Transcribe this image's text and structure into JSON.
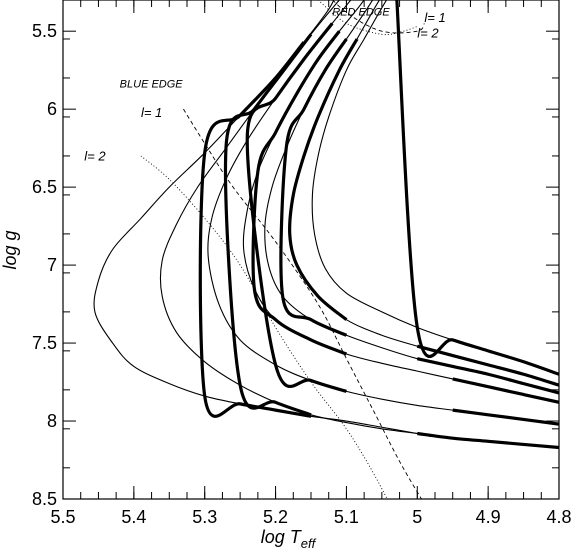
{
  "chart_data": {
    "type": "line",
    "title": "",
    "xlabel": "log T",
    "xlabel_sub": "eff",
    "ylabel": "log g",
    "xlim": [
      5.5,
      4.8
    ],
    "ylim": [
      8.5,
      5.3
    ],
    "x_inverted": true,
    "y_inverted": true,
    "grid": false,
    "legend": "none",
    "x_ticks": [
      {
        "v": 5.5,
        "label": "5.5"
      },
      {
        "v": 5.4,
        "label": "5.4"
      },
      {
        "v": 5.3,
        "label": "5.3"
      },
      {
        "v": 5.2,
        "label": "5.2"
      },
      {
        "v": 5.1,
        "label": "5.1"
      },
      {
        "v": 5.0,
        "label": "5"
      },
      {
        "v": 4.9,
        "label": "4.9"
      },
      {
        "v": 4.8,
        "label": "4.8"
      }
    ],
    "y_ticks": [
      {
        "v": 5.5,
        "label": "5.5"
      },
      {
        "v": 6.0,
        "label": "6"
      },
      {
        "v": 6.5,
        "label": "6.5"
      },
      {
        "v": 7.0,
        "label": "7"
      },
      {
        "v": 7.5,
        "label": "7.5"
      },
      {
        "v": 8.0,
        "label": "8"
      },
      {
        "v": 8.5,
        "label": "8.5"
      }
    ],
    "x_minor_step": 0.025,
    "y_minor_step": 0.25,
    "tracks": [
      {
        "points": [
          [
            4.8,
            7.7
          ],
          [
            4.85,
            7.62
          ],
          [
            4.9,
            7.55
          ],
          [
            4.95,
            7.48
          ],
          [
            5.0,
            7.4
          ],
          [
            5.05,
            7.3
          ],
          [
            5.1,
            7.18
          ],
          [
            5.13,
            7.02
          ],
          [
            5.145,
            6.8
          ],
          [
            5.148,
            6.55
          ],
          [
            5.14,
            6.3
          ],
          [
            5.125,
            6.05
          ],
          [
            5.1,
            5.75
          ],
          [
            5.075,
            5.55
          ],
          [
            5.05,
            5.35
          ],
          [
            5.03,
            5.2
          ]
        ],
        "thick": [
          [
            4.8,
            5.03
          ]
        ]
      },
      {
        "points": [
          [
            4.8,
            7.77
          ],
          [
            4.85,
            7.7
          ],
          [
            4.9,
            7.64
          ],
          [
            4.95,
            7.58
          ],
          [
            5.0,
            7.52
          ],
          [
            5.05,
            7.45
          ],
          [
            5.1,
            7.35
          ],
          [
            5.14,
            7.2
          ],
          [
            5.17,
            7.0
          ],
          [
            5.18,
            6.8
          ],
          [
            5.175,
            6.55
          ],
          [
            5.16,
            6.3
          ],
          [
            5.14,
            6.05
          ],
          [
            5.11,
            5.75
          ],
          [
            5.085,
            5.55
          ],
          [
            5.06,
            5.35
          ],
          [
            5.04,
            5.2
          ]
        ],
        "thick": [
          [
            4.8,
            5.035
          ],
          [
            5.075,
            5.18
          ]
        ]
      },
      {
        "points": [
          [
            4.8,
            7.82
          ],
          [
            4.85,
            7.76
          ],
          [
            4.9,
            7.7
          ],
          [
            4.95,
            7.65
          ],
          [
            5.0,
            7.6
          ],
          [
            5.05,
            7.53
          ],
          [
            5.1,
            7.45
          ],
          [
            5.15,
            7.35
          ],
          [
            5.19,
            7.2
          ],
          [
            5.21,
            7.0
          ],
          [
            5.215,
            6.75
          ],
          [
            5.205,
            6.5
          ],
          [
            5.185,
            6.25
          ],
          [
            5.16,
            6.0
          ],
          [
            5.13,
            5.75
          ],
          [
            5.1,
            5.55
          ],
          [
            5.07,
            5.35
          ],
          [
            5.05,
            5.2
          ]
        ],
        "thick": [
          [
            4.8,
            5.03
          ],
          [
            5.08,
            5.2
          ]
        ]
      },
      {
        "points": [
          [
            4.8,
            7.88
          ],
          [
            4.85,
            7.83
          ],
          [
            4.9,
            7.78
          ],
          [
            4.95,
            7.73
          ],
          [
            5.0,
            7.68
          ],
          [
            5.05,
            7.63
          ],
          [
            5.1,
            7.57
          ],
          [
            5.15,
            7.48
          ],
          [
            5.2,
            7.35
          ],
          [
            5.23,
            7.15
          ],
          [
            5.245,
            6.9
          ],
          [
            5.24,
            6.65
          ],
          [
            5.225,
            6.4
          ],
          [
            5.2,
            6.15
          ],
          [
            5.17,
            5.9
          ],
          [
            5.14,
            5.68
          ],
          [
            5.11,
            5.5
          ],
          [
            5.08,
            5.33
          ],
          [
            5.06,
            5.2
          ]
        ],
        "thick": [
          [
            4.8,
            4.98
          ],
          [
            5.09,
            5.23
          ]
        ]
      },
      {
        "points": [
          [
            4.8,
            8.02
          ],
          [
            4.85,
            7.99
          ],
          [
            4.9,
            7.96
          ],
          [
            4.95,
            7.93
          ],
          [
            5.0,
            7.9
          ],
          [
            5.05,
            7.86
          ],
          [
            5.1,
            7.81
          ],
          [
            5.15,
            7.74
          ],
          [
            5.2,
            7.64
          ],
          [
            5.25,
            7.48
          ],
          [
            5.28,
            7.25
          ],
          [
            5.295,
            6.95
          ],
          [
            5.29,
            6.7
          ],
          [
            5.27,
            6.45
          ],
          [
            5.24,
            6.2
          ],
          [
            5.2,
            5.93
          ],
          [
            5.16,
            5.68
          ],
          [
            5.12,
            5.45
          ],
          [
            5.09,
            5.28
          ],
          [
            5.07,
            5.2
          ]
        ],
        "thick": [
          [
            4.8,
            4.98
          ],
          [
            5.1,
            5.24
          ]
        ]
      },
      {
        "points": [
          [
            4.8,
            8.17
          ],
          [
            4.85,
            8.15
          ],
          [
            4.9,
            8.13
          ],
          [
            4.95,
            8.11
          ],
          [
            5.0,
            8.08
          ],
          [
            5.05,
            8.05
          ],
          [
            5.1,
            8.01
          ],
          [
            5.15,
            7.96
          ],
          [
            5.2,
            7.88
          ],
          [
            5.25,
            7.77
          ],
          [
            5.3,
            7.62
          ],
          [
            5.34,
            7.43
          ],
          [
            5.36,
            7.2
          ],
          [
            5.36,
            6.97
          ],
          [
            5.34,
            6.74
          ],
          [
            5.31,
            6.5
          ],
          [
            5.27,
            6.25
          ],
          [
            5.23,
            6.0
          ],
          [
            5.19,
            5.76
          ],
          [
            5.15,
            5.52
          ],
          [
            5.11,
            5.3
          ],
          [
            5.09,
            5.2
          ]
        ],
        "thick": [
          [
            4.8,
            5.01
          ],
          [
            5.12,
            5.28
          ]
        ]
      },
      {
        "points": [
          [
            4.98,
            8.1
          ],
          [
            5.0,
            8.08
          ],
          [
            5.05,
            8.04
          ],
          [
            5.1,
            8.0
          ],
          [
            5.15,
            7.97
          ],
          [
            5.2,
            7.93
          ],
          [
            5.25,
            7.89
          ],
          [
            5.3,
            7.84
          ],
          [
            5.35,
            7.76
          ],
          [
            5.4,
            7.65
          ],
          [
            5.43,
            7.5
          ],
          [
            5.455,
            7.3
          ],
          [
            5.45,
            7.1
          ],
          [
            5.43,
            6.9
          ],
          [
            5.39,
            6.7
          ],
          [
            5.35,
            6.5
          ],
          [
            5.3,
            6.28
          ],
          [
            5.25,
            6.04
          ],
          [
            5.2,
            5.8
          ],
          [
            5.16,
            5.57
          ],
          [
            5.125,
            5.36
          ],
          [
            5.11,
            5.22
          ]
        ],
        "thick": [
          [
            5.13,
            5.31
          ]
        ]
      }
    ],
    "instability_strips": [
      {
        "edge": "blue",
        "label": "l= 1",
        "style": "dashed",
        "points": [
          [
            5.33,
            6.0
          ],
          [
            5.3,
            6.22
          ],
          [
            5.26,
            6.5
          ],
          [
            5.2,
            6.85
          ],
          [
            5.14,
            7.25
          ],
          [
            5.1,
            7.6
          ],
          [
            5.06,
            7.95
          ],
          [
            5.02,
            8.3
          ],
          [
            4.97,
            8.68
          ]
        ]
      },
      {
        "edge": "blue",
        "label": "l= 2",
        "style": "dotted",
        "points": [
          [
            5.39,
            6.3
          ],
          [
            5.35,
            6.45
          ],
          [
            5.3,
            6.7
          ],
          [
            5.25,
            7.0
          ],
          [
            5.2,
            7.4
          ],
          [
            5.15,
            7.75
          ],
          [
            5.1,
            8.05
          ],
          [
            5.06,
            8.35
          ],
          [
            5.02,
            8.7
          ]
        ]
      },
      {
        "edge": "red",
        "label": "l= 1",
        "style": "dashed",
        "points": [
          [
            5.14,
            5.2
          ],
          [
            5.1,
            5.38
          ],
          [
            5.05,
            5.5
          ],
          [
            5.0,
            5.5
          ],
          [
            4.99,
            5.45
          ]
        ]
      },
      {
        "edge": "red",
        "label": "l= 2",
        "style": "dotted",
        "points": [
          [
            5.14,
            5.3
          ],
          [
            5.1,
            5.45
          ],
          [
            5.05,
            5.52
          ],
          [
            5.02,
            5.5
          ],
          [
            5.0,
            5.47
          ]
        ]
      }
    ],
    "annotations": [
      {
        "text": "RED EDGE",
        "x": 5.12,
        "y": 5.4
      },
      {
        "text": "l= 1",
        "x": 4.99,
        "y": 5.44
      },
      {
        "text": "l= 2",
        "x": 5.0,
        "y": 5.54
      },
      {
        "text": "BLUE EDGE",
        "x": 5.42,
        "y": 5.86
      },
      {
        "text": "l= 1",
        "x": 5.39,
        "y": 6.05
      },
      {
        "text": "l= 2",
        "x": 5.47,
        "y": 6.33
      }
    ]
  }
}
